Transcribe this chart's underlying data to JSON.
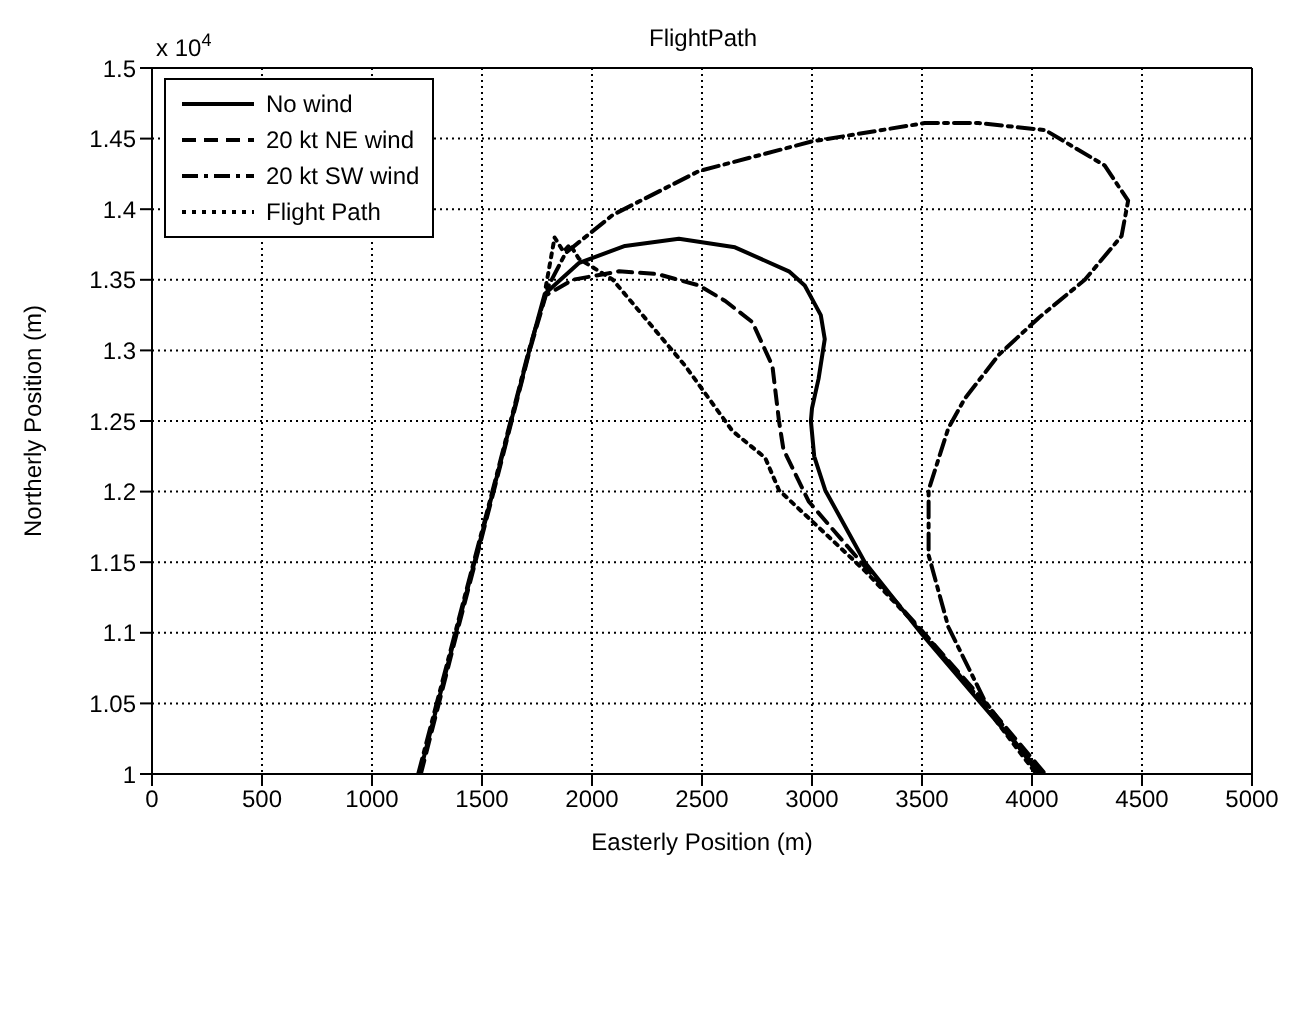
{
  "chart_data": {
    "type": "line",
    "title": "FlightPath",
    "xlabel": "Easterly Position (m)",
    "ylabel": "Northerly Position (m)",
    "annotations": [
      "x 10$^{4}$"
    ],
    "xlim": [
      0,
      5000
    ],
    "xticks": [
      0,
      500,
      1000,
      1500,
      2000,
      2500,
      3000,
      3500,
      4000,
      4500,
      5000
    ],
    "ylim": [
      1,
      1.5
    ],
    "yticks": [
      1,
      1.05,
      1.1,
      1.15,
      1.2,
      1.25,
      1.3,
      1.35,
      1.4,
      1.45,
      1.5
    ],
    "grid": true,
    "legend": "top left",
    "marker": "none",
    "series": [
      {
        "name": "No wind",
        "color": "#000000",
        "line_style": "solid",
        "x": [
          1216,
          1382,
          1550,
          1715,
          1785,
          1942,
          2150,
          2395,
          2650,
          2895,
          2967,
          3040,
          3058,
          3030,
          3000,
          2995,
          3010,
          3060,
          3240,
          3500,
          3757,
          4045
        ],
        "values": [
          1,
          1.1,
          1.2,
          1.3,
          1.34,
          1.362,
          1.374,
          1.379,
          1.373,
          1.356,
          1.346,
          1.325,
          1.308,
          1.28,
          1.259,
          1.25,
          1.225,
          1.201,
          1.15,
          1.099,
          1.052,
          1
        ]
      },
      {
        "name": "20 kt NE wind",
        "color": "#000000",
        "line_style": "dashed",
        "x": [
          1222,
          1386,
          1553,
          1717,
          1790,
          1912,
          2123,
          2300,
          2486,
          2606,
          2729,
          2820,
          2850,
          2870,
          2985,
          3240,
          3485,
          3757,
          4060
        ],
        "values": [
          1,
          1.1,
          1.2,
          1.3,
          1.339,
          1.35,
          1.356,
          1.354,
          1.346,
          1.335,
          1.32,
          1.289,
          1.25,
          1.23,
          1.193,
          1.147,
          1.104,
          1.056,
          1
        ]
      },
      {
        "name": "20 kt SW wind",
        "color": "#000000",
        "line_style": "dashdot",
        "x": [
          1210,
          1378,
          1547,
          1713,
          1800,
          1880,
          2095,
          2486,
          3000,
          3512,
          3757,
          4060,
          4330,
          4437,
          4407,
          4240,
          4030,
          3850,
          3695,
          3620,
          3530,
          3530,
          3620,
          3785,
          4030
        ],
        "values": [
          1,
          1.1,
          1.2,
          1.3,
          1.345,
          1.369,
          1.396,
          1.427,
          1.448,
          1.461,
          1.461,
          1.456,
          1.431,
          1.406,
          1.381,
          1.35,
          1.323,
          1.297,
          1.266,
          1.245,
          1.201,
          1.155,
          1.104,
          1.052,
          1
        ]
      },
      {
        "name": "Flight Path",
        "color": "#000000",
        "line_style": "dotted",
        "x": [
          1790,
          1830,
          1870,
          1900,
          1940,
          2095,
          2424,
          2638,
          2787,
          2850,
          3240,
          3512,
          3757,
          4020
        ],
        "values": [
          1.345,
          1.38,
          1.37,
          1.375,
          1.365,
          1.35,
          1.289,
          1.243,
          1.224,
          1.201,
          1.144,
          1.099,
          1.054,
          1
        ]
      }
    ]
  }
}
